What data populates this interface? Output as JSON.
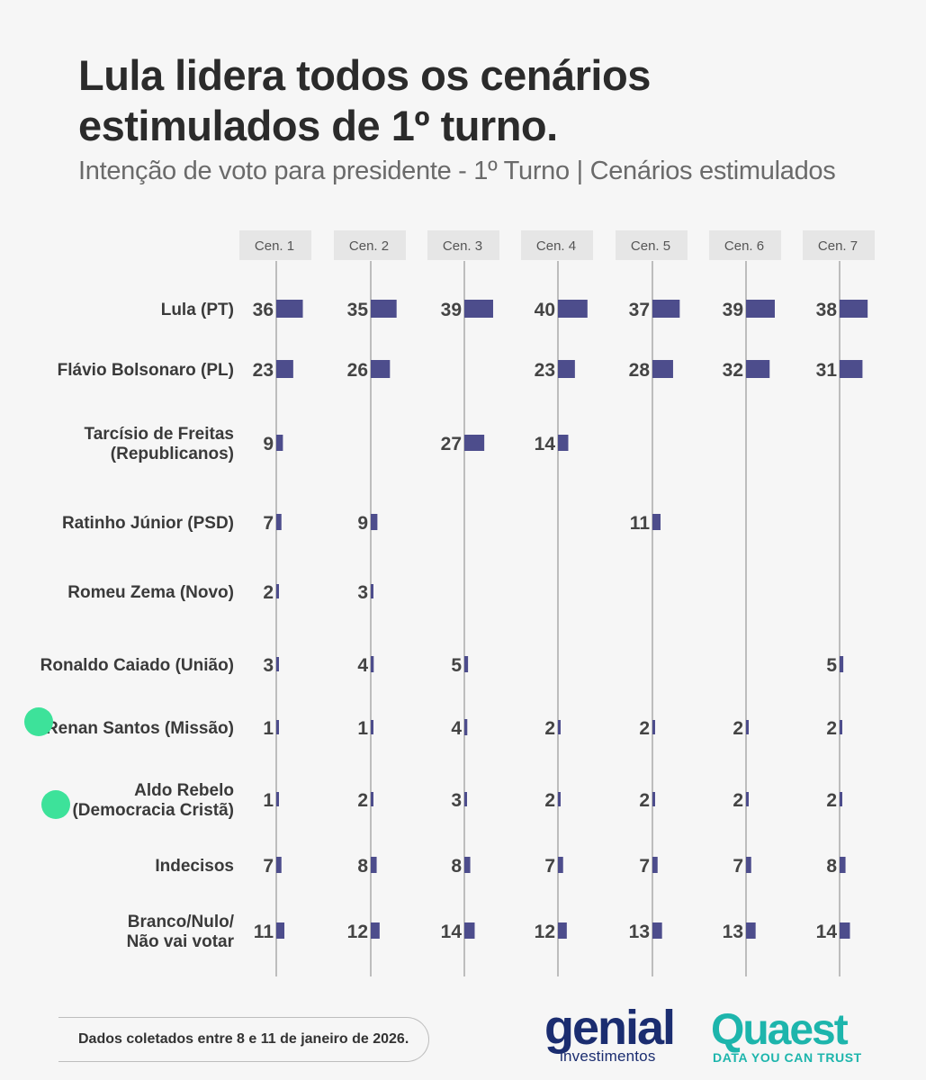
{
  "title": "Lula lidera todos os cenários estimulados de 1º turno.",
  "subtitle": "Intenção de voto para presidente - 1º Turno | Cenários estimulados",
  "chart_data": {
    "type": "bar",
    "categories": [
      "Cen. 1",
      "Cen. 2",
      "Cen. 3",
      "Cen. 4",
      "Cen. 5",
      "Cen. 6",
      "Cen. 7"
    ],
    "rows": [
      {
        "label": [
          "Lula (PT)"
        ],
        "values": [
          36,
          35,
          39,
          40,
          37,
          39,
          38
        ],
        "marker": false
      },
      {
        "label": [
          "Flávio Bolsonaro (PL)"
        ],
        "values": [
          23,
          26,
          null,
          23,
          28,
          32,
          31
        ],
        "marker": false
      },
      {
        "label": [
          "Tarcísio de Freitas",
          "(Republicanos)"
        ],
        "values": [
          9,
          null,
          27,
          14,
          null,
          null,
          null
        ],
        "marker": false
      },
      {
        "label": [
          "Ratinho Júnior (PSD)"
        ],
        "values": [
          7,
          9,
          null,
          null,
          11,
          null,
          null
        ],
        "marker": false
      },
      {
        "label": [
          "Romeu Zema (Novo)"
        ],
        "values": [
          2,
          3,
          null,
          null,
          null,
          null,
          null
        ],
        "marker": false
      },
      {
        "label": [
          "Ronaldo Caiado (União)"
        ],
        "values": [
          3,
          4,
          5,
          null,
          null,
          null,
          5
        ],
        "marker": false
      },
      {
        "label": [
          "Renan Santos (Missão)"
        ],
        "values": [
          1,
          1,
          4,
          2,
          2,
          2,
          2
        ],
        "marker": true
      },
      {
        "label": [
          "Aldo Rebelo",
          "(Democracia Cristã)"
        ],
        "values": [
          1,
          2,
          3,
          2,
          2,
          2,
          2
        ],
        "marker": true
      },
      {
        "label": [
          "Indecisos"
        ],
        "values": [
          7,
          8,
          8,
          7,
          7,
          7,
          8
        ],
        "marker": false
      },
      {
        "label": [
          "Branco/Nulo/",
          "Não vai votar"
        ],
        "values": [
          11,
          12,
          14,
          12,
          13,
          13,
          14
        ],
        "marker": false
      }
    ],
    "colors": {
      "bar": "#4d4d8c",
      "axis": "#bdbdbd",
      "header_bg": "#e6e6e6",
      "marker": "#3de29a"
    }
  },
  "footer": {
    "note": "Dados coletados entre 8 e 11 de janeiro de 2026."
  },
  "logos": {
    "genial": {
      "word": "genial",
      "sub": "investimentos"
    },
    "quaest": {
      "word": "Quaest",
      "sub": "DATA YOU CAN TRUST"
    }
  }
}
